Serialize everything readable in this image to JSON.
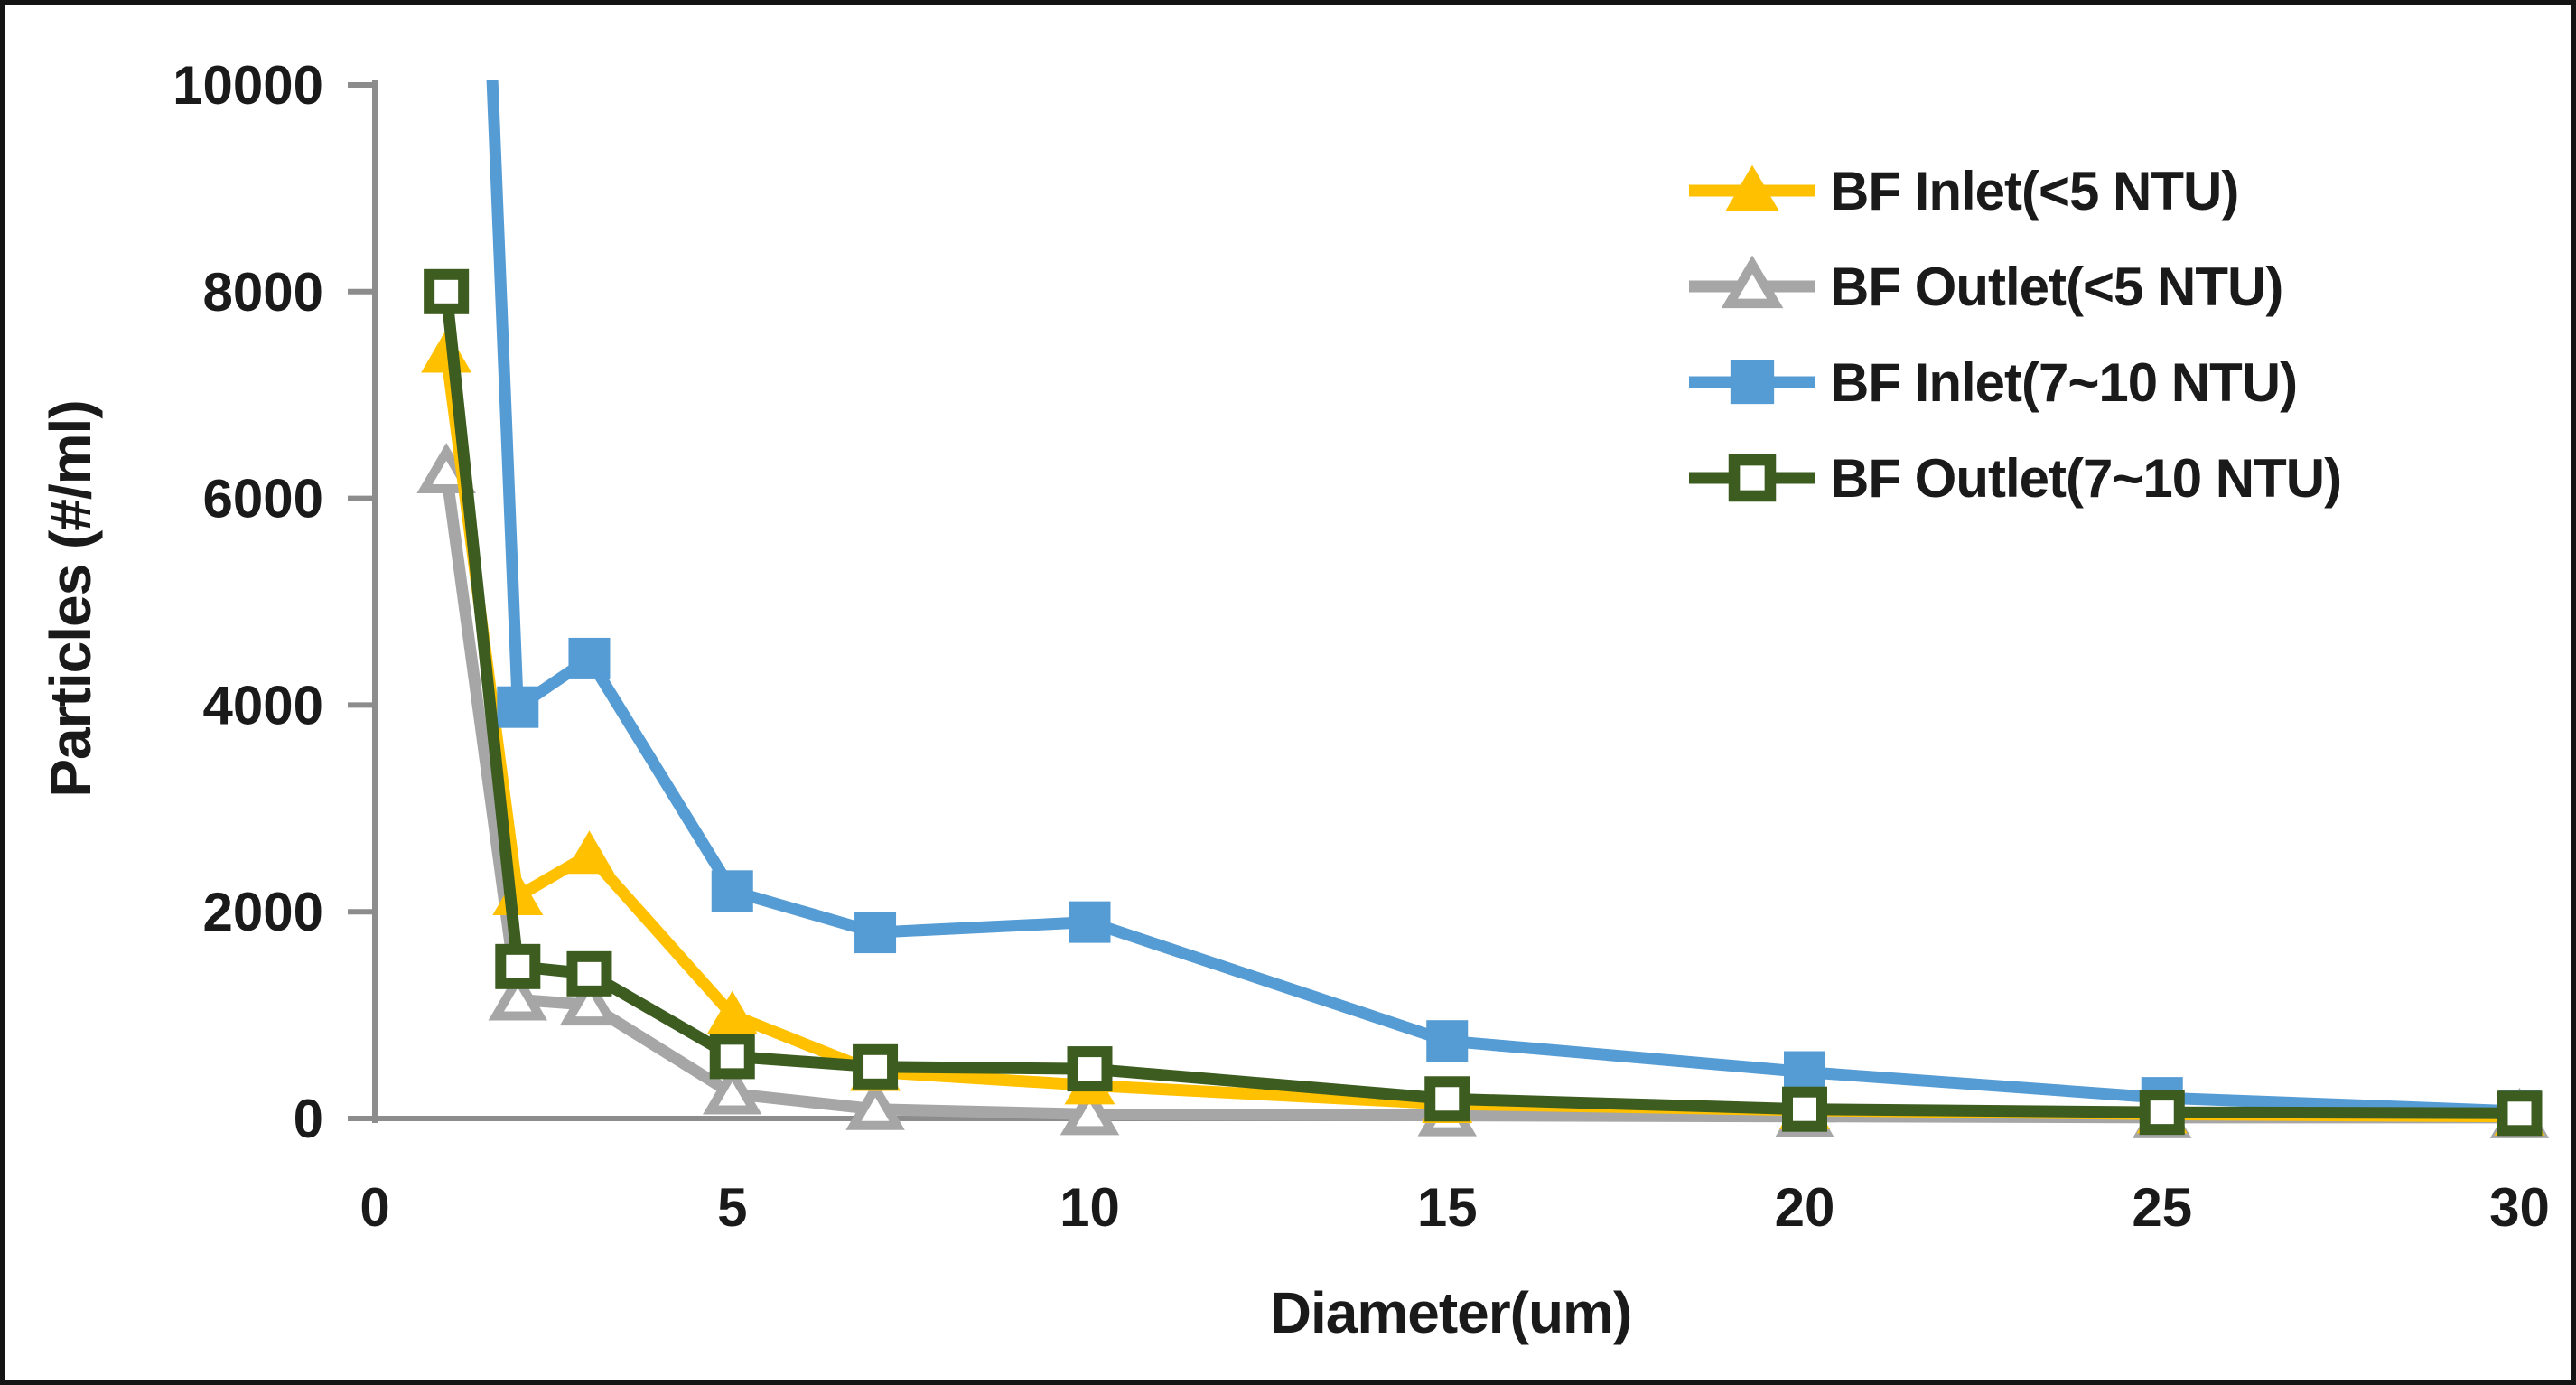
{
  "chart_data": {
    "type": "line",
    "title": "",
    "xlabel": "Diameter(um)",
    "ylabel": "Particles (#/ml)",
    "x": [
      1,
      2,
      3,
      5,
      7,
      10,
      15,
      20,
      25,
      30
    ],
    "xlim": [
      0,
      30
    ],
    "ylim": [
      0,
      10000
    ],
    "x_ticks": [
      0,
      5,
      10,
      15,
      20,
      25,
      30
    ],
    "y_ticks": [
      0,
      2000,
      4000,
      6000,
      8000,
      10000
    ],
    "grid": false,
    "legend_position": "upper-right-inside",
    "axis_color": "#8C8C8C",
    "text_color": "#1a1a1a",
    "series": [
      {
        "name": "BF Inlet(<5 NTU)",
        "color": "#FFC000",
        "marker": "triangle",
        "marker_fill": "solid",
        "values": [
          7400,
          2150,
          2550,
          1000,
          450,
          320,
          140,
          80,
          40,
          20
        ]
      },
      {
        "name": "BF Outlet(<5 NTU)",
        "color": "#A6A6A6",
        "marker": "triangle",
        "marker_fill": "open",
        "values": [
          6250,
          1150,
          1100,
          240,
          90,
          40,
          30,
          20,
          10,
          10
        ]
      },
      {
        "name": "BF Inlet(7~10 NTU)",
        "color": "#559BD4",
        "marker": "square",
        "marker_fill": "solid",
        "values": [
          21000,
          3980,
          4450,
          2200,
          1800,
          1900,
          750,
          450,
          200,
          70
        ],
        "note": "first point exceeds y-axis maximum; line is clipped at top of plot"
      },
      {
        "name": "BF Outlet(7~10 NTU)",
        "color": "#3D5C20",
        "marker": "square",
        "marker_fill": "open",
        "values": [
          8000,
          1470,
          1400,
          600,
          500,
          480,
          190,
          90,
          60,
          50
        ]
      }
    ]
  }
}
